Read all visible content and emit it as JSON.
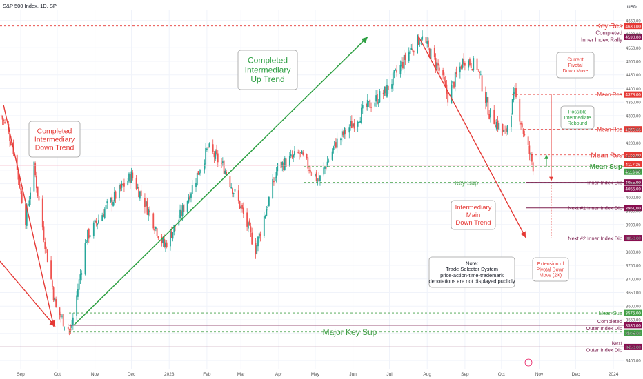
{
  "header": {
    "title": "S&P 500 Index, 1D, SP",
    "currency": "USD"
  },
  "chart_data": {
    "type": "candlestick",
    "y_axis": {
      "ticks": [
        3400,
        3450,
        3500,
        3550,
        3600,
        3650,
        3700,
        3750,
        3800,
        3850,
        3900,
        3950,
        4000,
        4050,
        4100,
        4150,
        4200,
        4250,
        4300,
        4350,
        4400,
        4450,
        4500,
        4550,
        4600,
        4650
      ],
      "tick_labels": [
        "3400.00",
        "3450.00",
        "3500.00",
        "3550.00",
        "3600.00",
        "3650.00",
        "3700.00",
        "3750.00",
        "3800.00",
        "3850.00",
        "3900.00",
        "3950.00",
        "4000.00",
        "4050.00",
        "4100.00",
        "4150.00",
        "4200.00",
        "4250.00",
        "4300.00",
        "4350.00",
        "4400.00",
        "4450.00",
        "4500.00",
        "4550.00",
        "4600.00",
        "4650.00"
      ],
      "range": [
        3370,
        4690
      ]
    },
    "x_axis": {
      "labels": [
        "Sep",
        "Oct",
        "Nov",
        "Dec",
        "2023",
        "Feb",
        "Mar",
        "Apr",
        "May",
        "Jun",
        "Jul",
        "Aug",
        "Sep",
        "Oct",
        "Nov",
        "Dec",
        "2024"
      ],
      "label_dates": [
        "2022-09-01",
        "2022-10-01",
        "2022-11-01",
        "2022-12-01",
        "2023-01-01",
        "2023-02-01",
        "2023-03-01",
        "2023-04-01",
        "2023-05-01",
        "2023-06-01",
        "2023-07-01",
        "2023-08-01",
        "2023-09-01",
        "2023-10-01",
        "2023-11-01",
        "2023-12-01",
        "2024-01-01"
      ],
      "range": [
        "2022-08-15",
        "2024-01-10"
      ]
    },
    "price_path": [
      [
        "2022-08-16",
        4300
      ],
      [
        "2022-08-25",
        4200
      ],
      [
        "2022-09-05",
        3920
      ],
      [
        "2022-09-12",
        4110
      ],
      [
        "2022-09-20",
        3860
      ],
      [
        "2022-09-30",
        3590
      ],
      [
        "2022-10-12",
        3505
      ],
      [
        "2022-10-25",
        3850
      ],
      [
        "2022-11-10",
        3960
      ],
      [
        "2022-12-01",
        4080
      ],
      [
        "2022-12-12",
        3980
      ],
      [
        "2022-12-28",
        3820
      ],
      [
        "2023-01-10",
        3930
      ],
      [
        "2023-02-02",
        4180
      ],
      [
        "2023-02-15",
        4110
      ],
      [
        "2023-03-01",
        3960
      ],
      [
        "2023-03-13",
        3810
      ],
      [
        "2023-03-31",
        4110
      ],
      [
        "2023-04-18",
        4160
      ],
      [
        "2023-05-04",
        4060
      ],
      [
        "2023-05-18",
        4200
      ],
      [
        "2023-06-12",
        4330
      ],
      [
        "2023-06-28",
        4390
      ],
      [
        "2023-07-18",
        4540
      ],
      [
        "2023-07-27",
        4590
      ],
      [
        "2023-08-10",
        4480
      ],
      [
        "2023-08-18",
        4370
      ],
      [
        "2023-08-31",
        4510
      ],
      [
        "2023-09-11",
        4480
      ],
      [
        "2023-09-21",
        4310
      ],
      [
        "2023-10-04",
        4230
      ],
      [
        "2023-10-12",
        4380
      ],
      [
        "2023-10-20",
        4220
      ],
      [
        "2023-10-27",
        4117
      ]
    ],
    "levels": [
      {
        "name": "Key Res",
        "value": 4630,
        "kind": "res"
      },
      {
        "name": "Completed Inner Index Rally",
        "value": 4590,
        "kind": "completed"
      },
      {
        "name": "Mean Res",
        "value": 4378,
        "kind": "res"
      },
      {
        "name": "Mean Res",
        "value": 4250,
        "kind": "res"
      },
      {
        "name": "Mean Res",
        "value": 4156,
        "kind": "res"
      },
      {
        "name": "Mean Sup",
        "value": 4113,
        "kind": "sup"
      },
      {
        "name": "Inner Index Dip",
        "value": 4055,
        "kind": "dip"
      },
      {
        "name": "Key Sup",
        "value": 4055,
        "kind": "sup"
      },
      {
        "name": "Next #1 Inner Index Dip",
        "value": 3961,
        "kind": "dip"
      },
      {
        "name": "Next #2 Inner Index Dip",
        "value": 3850,
        "kind": "dip"
      },
      {
        "name": "Mean Sup",
        "value": 3575,
        "kind": "sup"
      },
      {
        "name": "Completed Outer Index Dip",
        "value": 3530,
        "kind": "completed"
      },
      {
        "name": "Major Key Sup",
        "value": 3505,
        "kind": "sup"
      },
      {
        "name": "Next Outer Index Dip",
        "value": 3450,
        "kind": "dip"
      }
    ],
    "price_labels": {
      "key_res": "4630.00",
      "completed_rally": "4590.00",
      "mean_res_1": "4378.00",
      "mean_res_2": "4250.00",
      "mean_res_3": "4156.00",
      "current": "4117.36",
      "mean_sup": "4113.00",
      "inner_dip_a": "4055.00",
      "inner_dip_b": "4055.00",
      "next1": "3961.00",
      "next2": "3850.00",
      "mean_sup_2": "3575.00",
      "completed_outer": "3530.00",
      "major_key_sup": "3505.00",
      "next_outer": "3450.00"
    },
    "annotations": {
      "completed_down": [
        "Completed",
        "Intermediary",
        "Down Trend"
      ],
      "completed_up": [
        "Completed",
        "Intermediary",
        "Up Trend"
      ],
      "current_pivotal": [
        "Current",
        "Pivotal",
        "Down Move"
      ],
      "possible_rebound": [
        "Possible",
        "Intermediate",
        "Rebound"
      ],
      "main_down": [
        "Intermediary",
        "Main",
        "Down Trend"
      ],
      "note": [
        "Note:",
        "Trade Selecter System",
        "price-action-time-trademark",
        "denotations are not displayed publicly"
      ],
      "extension": [
        "Extension of",
        "Pivotal Down",
        "Move (2X)"
      ]
    },
    "level_text": {
      "key_res": "Key Res",
      "completed_rally_1": "Completed",
      "completed_rally_2": "Inner Index Rally",
      "mean_res_1": "Mean Res",
      "mean_res_2": "Mean Res",
      "mean_res_3": "Mean Res",
      "mean_sup": "Mean Sup",
      "inner_dip": "Inner Index Dip",
      "key_sup": "Key Sup",
      "next1": "Next #1 Inner Index Dip",
      "next2": "Next #2 Inner Index Dip",
      "mean_sup_2": "Mean Sup",
      "completed_outer_1": "Completed",
      "completed_outer_2": "Outer Index Dip",
      "major_key_sup": "Major Key Sup",
      "next_outer_1": "Next",
      "next_outer_2": "Outer Index Dip"
    },
    "colors": {
      "up": "#26a69a",
      "down": "#ef5350",
      "green_line": "#2ea043",
      "red_line": "#e53935",
      "purple": "#7b1f4f",
      "res_red": "#e53935",
      "sup_green": "#43a047",
      "label_bg_red": "#e53935",
      "label_bg_purple": "#880e4f",
      "label_bg_green": "#43a047"
    }
  }
}
